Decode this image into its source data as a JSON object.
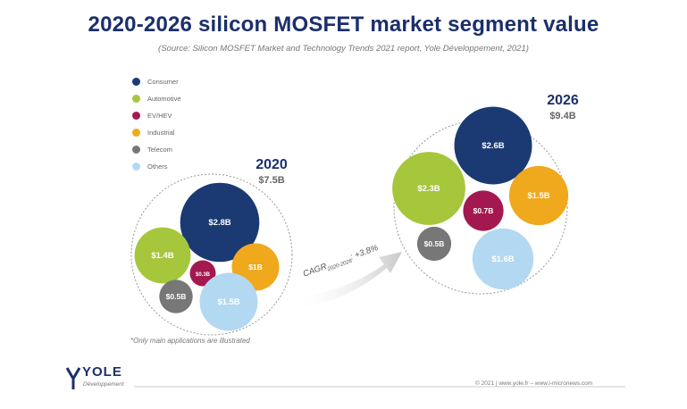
{
  "title": "2020-2026 silicon MOSFET market segment value",
  "subtitle": "(Source: Silicon MOSFET Market and Technology Trends 2021 report, Yole Développement, 2021)",
  "legend": [
    {
      "label": "Consumer",
      "color": "#1b3a73"
    },
    {
      "label": "Automotive",
      "color": "#a6c63c"
    },
    {
      "label": "EV/HEV",
      "color": "#a3184f"
    },
    {
      "label": "Industrial",
      "color": "#f0a81c"
    },
    {
      "label": "Telecom",
      "color": "#777777"
    },
    {
      "label": "Others",
      "color": "#b3d8f2"
    }
  ],
  "cagr": {
    "prefix": "CAGR",
    "period": "2020-2026",
    "value": ": +3.8%"
  },
  "footnote": "*Only main applications are illustrated",
  "copyright": "© 2021 | www.yole.fr – www.i-micronews.com",
  "logo": {
    "name": "YOLE",
    "sub": "Développement"
  },
  "chart_data": {
    "type": "bubble",
    "unit": "$B",
    "panels": [
      {
        "year": "2020",
        "total_label": "$7.5B",
        "segments": [
          {
            "segment": "Consumer",
            "value": 2.8,
            "label": "$2.8B"
          },
          {
            "segment": "Automotive",
            "value": 1.4,
            "label": "$1.4B"
          },
          {
            "segment": "EV/HEV",
            "value": 0.3,
            "label": "$0.3B"
          },
          {
            "segment": "Industrial",
            "value": 1.0,
            "label": "$1B"
          },
          {
            "segment": "Telecom",
            "value": 0.5,
            "label": "$0.5B"
          },
          {
            "segment": "Others",
            "value": 1.5,
            "label": "$1.5B"
          }
        ]
      },
      {
        "year": "2026",
        "total_label": "$9.4B",
        "segments": [
          {
            "segment": "Consumer",
            "value": 2.6,
            "label": "$2.6B"
          },
          {
            "segment": "Automotive",
            "value": 2.3,
            "label": "$2.3B"
          },
          {
            "segment": "EV/HEV",
            "value": 0.7,
            "label": "$0.7B"
          },
          {
            "segment": "Industrial",
            "value": 1.5,
            "label": "$1.5B"
          },
          {
            "segment": "Telecom",
            "value": 0.5,
            "label": "$0.5B"
          },
          {
            "segment": "Others",
            "value": 1.6,
            "label": "$1.6B"
          }
        ]
      }
    ]
  }
}
